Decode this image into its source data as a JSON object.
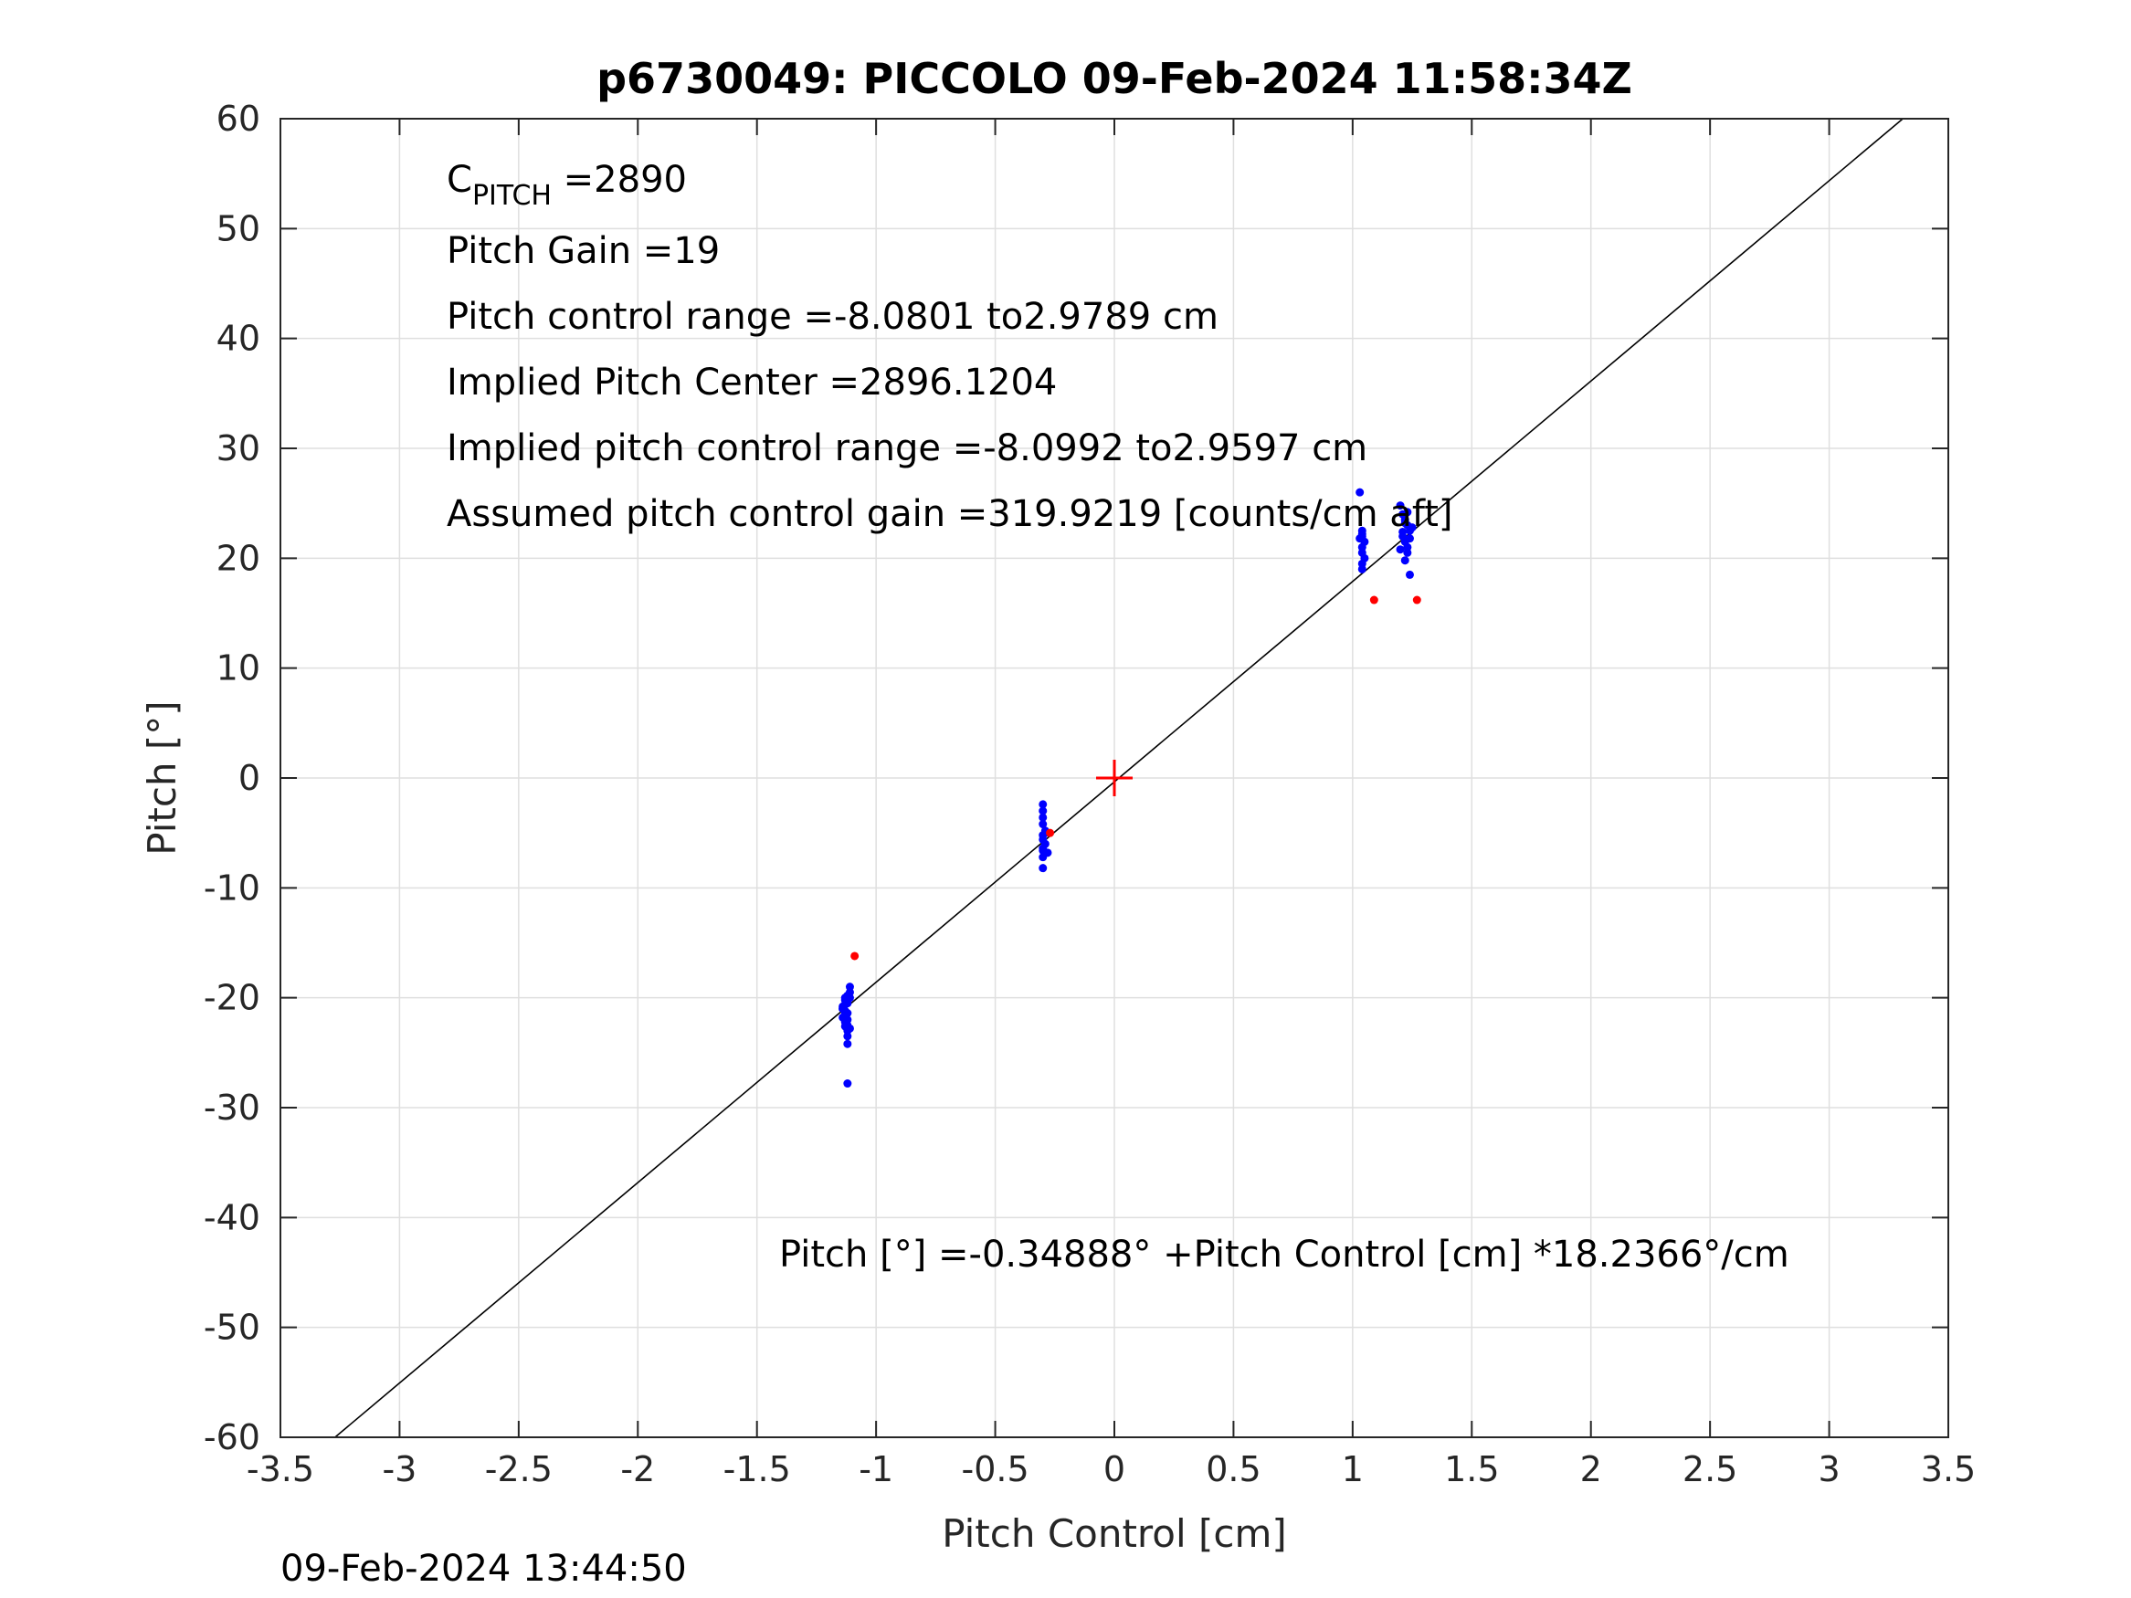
{
  "chart_data": {
    "type": "scatter",
    "title": "p6730049: PICCOLO 09-Feb-2024 11:58:34Z",
    "xlabel": "Pitch Control [cm]",
    "ylabel": "Pitch [°]",
    "xlim": [
      -3.5,
      3.5
    ],
    "ylim": [
      -60,
      60
    ],
    "xticks": [
      -3.5,
      -3,
      -2.5,
      -2,
      -1.5,
      -1,
      -0.5,
      0,
      0.5,
      1,
      1.5,
      2,
      2.5,
      3,
      3.5
    ],
    "xtick_labels": [
      "-3.5",
      "-3",
      "-2.5",
      "-2",
      "-1.5",
      "-1",
      "-0.5",
      "0",
      "0.5",
      "1",
      "1.5",
      "2",
      "2.5",
      "3",
      "3.5"
    ],
    "yticks": [
      -60,
      -50,
      -40,
      -30,
      -20,
      -10,
      0,
      10,
      20,
      30,
      40,
      50,
      60
    ],
    "ytick_labels": [
      "-60",
      "-50",
      "-40",
      "-30",
      "-20",
      "-10",
      "0",
      "10",
      "20",
      "30",
      "40",
      "50",
      "60"
    ],
    "grid": true,
    "fit_line": {
      "intercept": -0.34888,
      "slope": 18.2366,
      "color": "#000000"
    },
    "center_marker": {
      "x": 0,
      "y": 0,
      "color": "#ff0000"
    },
    "series": [
      {
        "color": "#0000ff",
        "x": [
          -1.13,
          -1.12,
          -1.14,
          -1.11,
          -1.13,
          -1.12,
          -1.14,
          -1.12,
          -1.13,
          -1.11,
          -1.12,
          -1.13,
          -1.14,
          -1.12,
          -1.11,
          -1.13,
          -1.12,
          -1.12,
          -1.11,
          -1.13,
          -1.12,
          -1.14,
          -1.13,
          -1.12,
          -0.3,
          -0.3,
          -0.3,
          -0.3,
          -0.29,
          -0.3,
          -0.3,
          -0.29,
          -0.3,
          -0.28,
          -0.3,
          -0.29,
          -0.3,
          -0.3,
          1.03,
          1.04,
          1.04,
          1.05,
          1.04,
          1.04,
          1.05,
          1.04,
          1.04,
          1.03,
          1.04,
          1.2,
          1.21,
          1.22,
          1.23,
          1.24,
          1.21,
          1.22,
          1.23,
          1.2,
          1.25,
          1.22,
          1.23,
          1.24,
          1.21,
          1.22,
          1.24,
          1.23
        ],
        "y": [
          -20.0,
          -20.5,
          -21.0,
          -19.5,
          -21.5,
          -22.0,
          -20.8,
          -22.5,
          -21.2,
          -19.0,
          -23.0,
          -20.2,
          -21.8,
          -23.5,
          -22.8,
          -20.6,
          -21.4,
          -24.2,
          -20.0,
          -22.2,
          -19.8,
          -21.0,
          -22.6,
          -27.8,
          -2.4,
          -3.0,
          -3.6,
          -4.2,
          -4.8,
          -5.2,
          -5.6,
          -6.0,
          -6.4,
          -6.8,
          -7.2,
          -5.0,
          -6.6,
          -8.2,
          26.0,
          22.5,
          22.0,
          21.5,
          21.0,
          20.5,
          20.0,
          19.5,
          19.0,
          21.8,
          22.2,
          24.8,
          24.0,
          23.5,
          23.0,
          22.5,
          22.0,
          21.5,
          21.0,
          20.8,
          22.8,
          23.2,
          20.5,
          21.8,
          22.4,
          19.8,
          18.5,
          24.2
        ]
      },
      {
        "color": "#ff0000",
        "x": [
          -1.09,
          -0.27,
          1.09,
          1.27
        ],
        "y": [
          -16.2,
          -5.0,
          16.2,
          16.2
        ]
      }
    ],
    "annotations": {
      "cpitch_base": "C",
      "cpitch_sub": "PITCH",
      "cpitch_value": " =2890",
      "pitch_gain": "Pitch Gain =19",
      "control_range": "Pitch control range =-8.0801 to2.9789 cm",
      "implied_center": "Implied Pitch Center =2896.1204",
      "implied_range": "Implied pitch control range =-8.0992 to2.9597 cm",
      "assumed_gain": "Assumed pitch control gain =319.9219 [counts/cm aft]",
      "equation": "Pitch [°] =-0.34888° +Pitch Control [cm] *18.2366°/cm"
    },
    "footer_timestamp": "09-Feb-2024 13:44:50"
  }
}
